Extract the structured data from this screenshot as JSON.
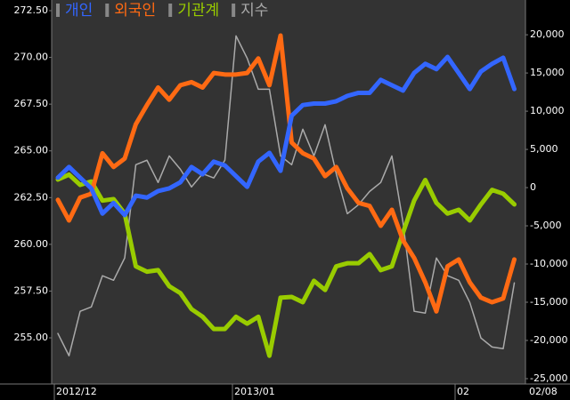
{
  "chart_data": {
    "type": "line",
    "categories": [
      "2012/12",
      null,
      null,
      null,
      null,
      null,
      null,
      null,
      null,
      null,
      null,
      null,
      null,
      null,
      null,
      null,
      "2013/01",
      null,
      null,
      null,
      null,
      null,
      null,
      null,
      null,
      null,
      null,
      null,
      null,
      null,
      null,
      null,
      null,
      null,
      null,
      null,
      "02",
      null,
      null,
      null,
      null,
      null
    ],
    "current_date": "02/08",
    "series": [
      {
        "name": "개인",
        "color": "#3366ff",
        "axis": "y2",
        "values": [
          1300,
          2700,
          1300,
          -100,
          -3400,
          -2000,
          -3600,
          -1050,
          -1300,
          -450,
          -100,
          700,
          2700,
          1750,
          3400,
          2900,
          1500,
          100,
          3400,
          4550,
          2200,
          9400,
          10800,
          11000,
          11000,
          11300,
          12000,
          12400,
          12400,
          14100,
          13400,
          12700,
          15000,
          16200,
          15500,
          17100,
          15000,
          12900,
          15200,
          16200,
          17000,
          12900
        ]
      },
      {
        "name": "외국인",
        "color": "#ff6a13",
        "axis": "y2",
        "values": [
          -1600,
          -4300,
          -1300,
          -800,
          4500,
          2700,
          3800,
          8300,
          10800,
          13100,
          11500,
          13400,
          13800,
          13100,
          15000,
          14800,
          14800,
          15000,
          16900,
          13400,
          19900,
          5900,
          4500,
          3800,
          1500,
          2700,
          -100,
          -2000,
          -2400,
          -5000,
          -2900,
          -6900,
          -9200,
          -12400,
          -16200,
          -10300,
          -9400,
          -12400,
          -14400,
          -15000,
          -14500,
          -9400
        ]
      },
      {
        "name": "기관계",
        "color": "#99cc00",
        "axis": "y2",
        "values": [
          1050,
          1700,
          350,
          800,
          -1700,
          -1500,
          -3400,
          -10300,
          -11000,
          -10800,
          -12900,
          -13800,
          -15900,
          -16900,
          -18500,
          -18500,
          -16900,
          -17800,
          -16900,
          -22000,
          -14400,
          -14300,
          -15000,
          -12200,
          -13400,
          -10300,
          -9900,
          -9900,
          -8700,
          -10800,
          -10300,
          -5900,
          -1700,
          1000,
          -2000,
          -3400,
          -2900,
          -4300,
          -2200,
          -300,
          -800,
          -2200
        ]
      },
      {
        "name": "지수",
        "color": "#aaaaaa",
        "values": [
          255.23,
          254.04,
          256.42,
          256.65,
          258.32,
          258.08,
          259.27,
          264.26,
          264.5,
          263.31,
          264.73,
          264.02,
          263.07,
          263.78,
          263.55,
          264.5,
          271.15,
          269.96,
          268.3,
          268.3,
          264.73,
          264.26,
          266.16,
          264.73,
          266.4,
          263.78,
          261.64,
          262.12,
          262.83,
          263.31,
          264.73,
          261.17,
          256.42,
          256.32,
          259.27,
          258.32,
          258.08,
          256.89,
          254.99,
          254.51,
          254.42,
          257.94
        ]
      }
    ],
    "ylim": [
      252.53,
      273.07
    ],
    "yticks": [
      {
        "value": 272.5,
        "label": "272.50"
      },
      {
        "value": 270,
        "label": "270.00"
      },
      {
        "value": 267.5,
        "label": "267.50"
      },
      {
        "value": 265,
        "label": "265.00"
      },
      {
        "value": 262.5,
        "label": "262.50"
      },
      {
        "value": 260,
        "label": "260.00"
      },
      {
        "value": 257.5,
        "label": "257.50"
      },
      {
        "value": 255,
        "label": "255.00"
      }
    ],
    "y2lim": [
      -25700,
      24550
    ],
    "y2ticks": [
      {
        "value": 20000,
        "label": "20,000"
      },
      {
        "value": 15000,
        "label": "15,000"
      },
      {
        "value": 10000,
        "label": "10,000"
      },
      {
        "value": 5000,
        "label": "5,000"
      },
      0,
      {
        "value": -5000,
        "label": "-5,000"
      },
      {
        "value": -10000,
        "label": "-10,000"
      },
      {
        "value": -15000,
        "label": "-15,000"
      },
      {
        "value": -20000,
        "label": "-20,000"
      },
      {
        "value": -25000,
        "label": "-25,000"
      }
    ],
    "legend_marker_color": "#888888",
    "grid": false
  }
}
